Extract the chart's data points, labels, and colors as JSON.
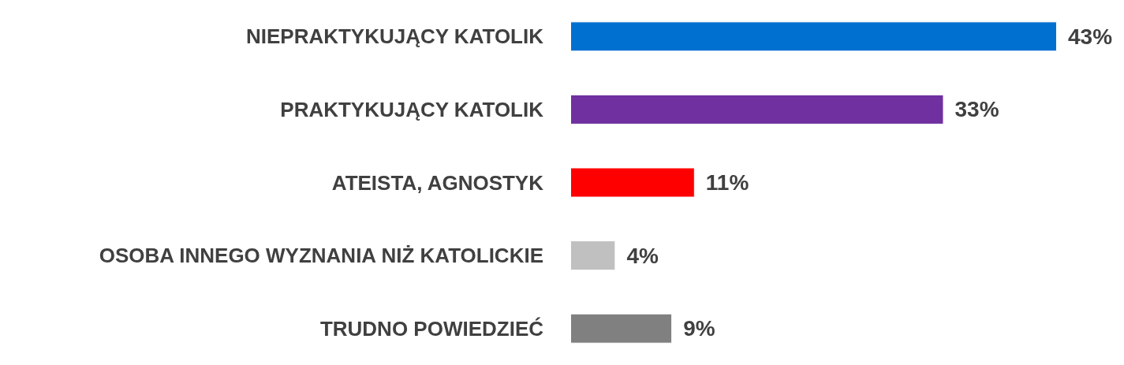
{
  "chart_data": {
    "type": "bar",
    "orientation": "horizontal",
    "categories": [
      "NIEPRAKTYKUJĄCY KATOLIK",
      "PRAKTYKUJĄCY KATOLIK",
      "ATEISTA, AGNOSTYK",
      "OSOBA INNEGO WYZNANIA NIŻ KATOLICKIE",
      "TRUDNO POWIEDZIEĆ"
    ],
    "values": [
      43,
      33,
      11,
      4,
      9
    ],
    "value_labels": [
      "43%",
      "33%",
      "11%",
      "4%",
      "9%"
    ],
    "colors": [
      "#0070d0",
      "#7030a0",
      "#ff0000",
      "#c0c0c0",
      "#808080"
    ],
    "tick_labels": "y"
  }
}
